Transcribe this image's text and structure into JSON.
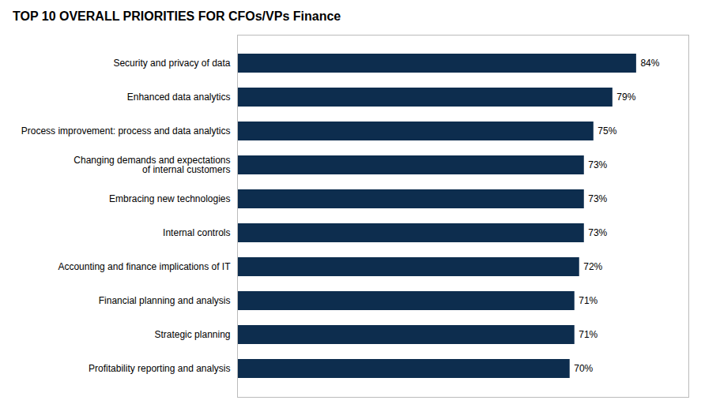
{
  "chart_data": {
    "type": "bar",
    "orientation": "horizontal",
    "title": "TOP 10 OVERALL PRIORITIES FOR CFOs/VPs Finance",
    "categories": [
      "Security and privacy of data",
      "Enhanced data analytics",
      "Process improvement: process and data analytics",
      "Changing demands and expectations\nof internal customers",
      "Embracing new technologies",
      "Internal controls",
      "Accounting and finance implications of IT",
      "Financial planning and analysis",
      "Strategic planning",
      "Profitability reporting and analysis"
    ],
    "values": [
      84,
      79,
      75,
      73,
      73,
      73,
      72,
      71,
      71,
      70
    ],
    "value_labels": [
      "84%",
      "79%",
      "75%",
      "73%",
      "73%",
      "73%",
      "72%",
      "71%",
      "71%",
      "70%"
    ],
    "color": "#0d2d4e",
    "xlim": [
      0,
      95
    ],
    "xticks": [],
    "data_labels": true,
    "tick_labels": "y",
    "grid": false
  }
}
